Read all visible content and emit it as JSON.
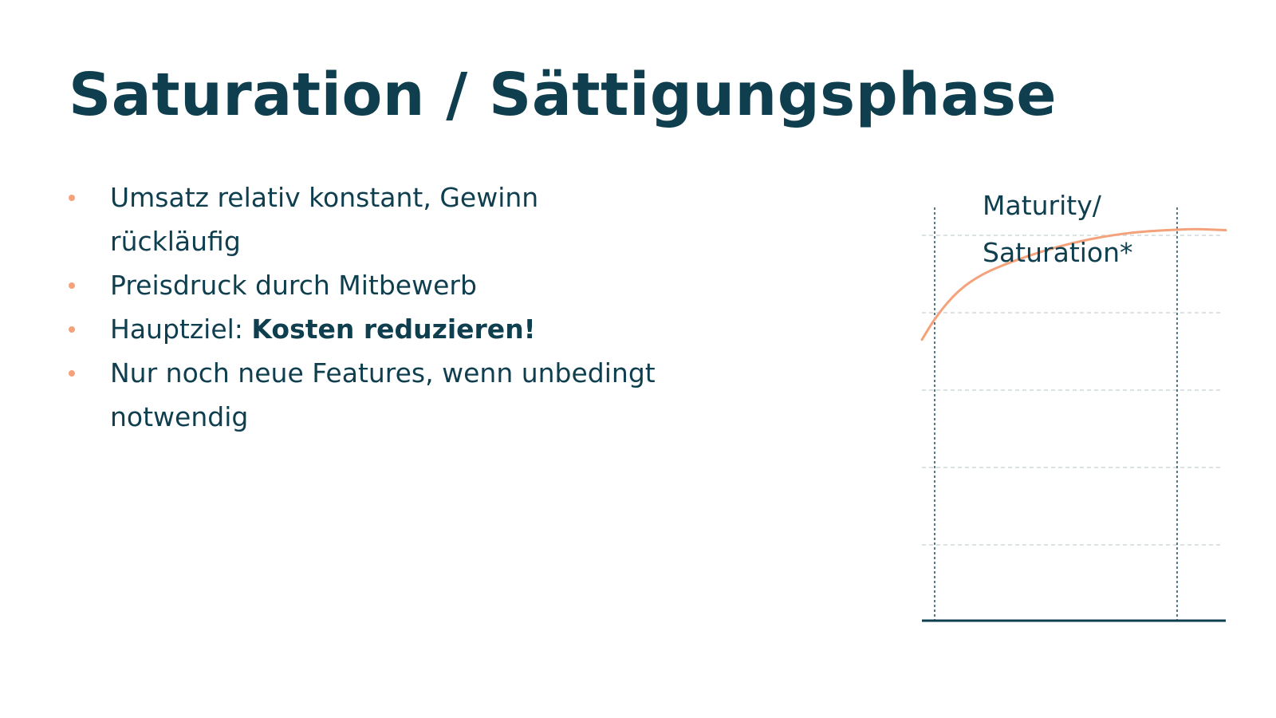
{
  "slide": {
    "title": "Saturation / Sättigungsphase",
    "bullets": [
      {
        "text": "Umsatz relativ konstant, Gewinn",
        "continuation": "rückläufig"
      },
      {
        "text": "Preisdruck durch Mitbewerb"
      },
      {
        "prefix": "Hauptziel: ",
        "bold": "Kosten reduzieren!"
      },
      {
        "text": "Nur noch neue Features, wenn unbedingt",
        "continuation": "notwendig"
      }
    ]
  },
  "chart_data": {
    "type": "line",
    "phase_label_line1": "Maturity/",
    "phase_label_line2": "Saturation*",
    "series": [
      {
        "x": [
          0,
          0.05,
          0.12,
          0.2,
          0.3,
          0.4,
          0.5,
          0.6,
          0.7,
          0.8,
          0.9,
          1.0
        ],
        "y": [
          0.68,
          0.74,
          0.8,
          0.84,
          0.87,
          0.895,
          0.915,
          0.93,
          0.94,
          0.945,
          0.948,
          0.945
        ]
      }
    ],
    "ylim": [
      0,
      1
    ],
    "grid": true,
    "colors": {
      "curve": "#f4a27c",
      "axis": "#0f3f4f",
      "grid": "#cfd8db",
      "bullet": "#f4a27c",
      "text": "#0f3f4f"
    }
  }
}
